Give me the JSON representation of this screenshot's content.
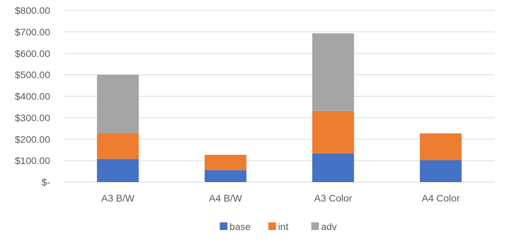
{
  "chart_data": {
    "type": "bar",
    "stacked": true,
    "title": "",
    "xlabel": "",
    "ylabel": "",
    "categories": [
      "A3 B/W",
      "A4 B/W",
      "A3 Color",
      "A4 Color"
    ],
    "series": [
      {
        "name": "base",
        "color": "#4472C4",
        "values": [
          108,
          56,
          133,
          102
        ]
      },
      {
        "name": "int",
        "color": "#ED7D31",
        "values": [
          120,
          71,
          198,
          125
        ]
      },
      {
        "name": "adv",
        "color": "#A5A5A5",
        "values": [
          272,
          0,
          362,
          0
        ]
      }
    ],
    "ylim": [
      0,
      800
    ],
    "yticks": [
      0,
      100,
      200,
      300,
      400,
      500,
      600,
      700,
      800
    ],
    "ytick_labels": [
      "$-",
      "$100.00",
      "$200.00",
      "$300.00",
      "$400.00",
      "$500.00",
      "$600.00",
      "$700.00",
      "$800.00"
    ],
    "grid": true,
    "legend_position": "bottom"
  }
}
